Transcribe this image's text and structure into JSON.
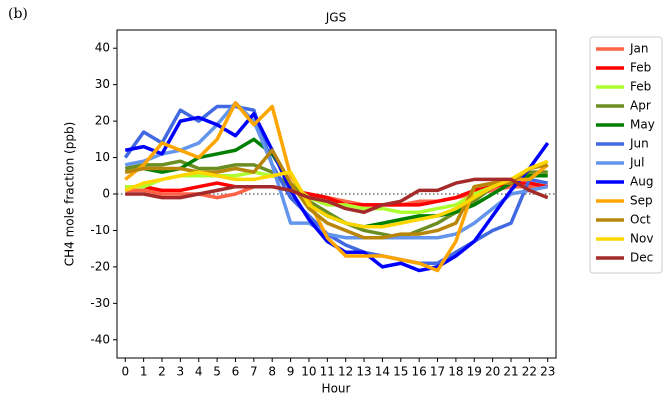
{
  "panel_label": "(b)",
  "chart_data": {
    "type": "line",
    "title": "JGS",
    "xlabel": "Hour",
    "ylabel": "CH4 mole fraction (ppb)",
    "x": [
      0,
      1,
      2,
      3,
      4,
      5,
      6,
      7,
      8,
      9,
      10,
      11,
      12,
      13,
      14,
      15,
      16,
      17,
      18,
      19,
      20,
      21,
      22,
      23
    ],
    "xlim": [
      -0.45,
      23.45
    ],
    "xticks": [
      0,
      1,
      2,
      3,
      4,
      5,
      6,
      7,
      8,
      9,
      10,
      11,
      12,
      13,
      14,
      15,
      16,
      17,
      18,
      19,
      20,
      21,
      22,
      23
    ],
    "ylim": [
      -45,
      45
    ],
    "yticks": [
      -40,
      -30,
      -20,
      -10,
      0,
      10,
      20,
      30,
      40
    ],
    "hline": 0,
    "legend": "outside-right",
    "series": [
      {
        "name": "Jan",
        "color": "#ff6347",
        "values": [
          1,
          1,
          0,
          0,
          0,
          -1,
          0,
          2,
          2,
          1,
          0,
          -1,
          -2,
          -3,
          -3,
          -3,
          -2,
          -2,
          -1,
          0,
          1,
          2,
          2,
          2
        ]
      },
      {
        "name": "Feb",
        "color": "#ff0000",
        "values": [
          2,
          2,
          1,
          1,
          2,
          3,
          2,
          2,
          2,
          1,
          0,
          -1,
          -3,
          -3,
          -3,
          -3,
          -3,
          -2,
          -1,
          1,
          2,
          3,
          3,
          2
        ]
      },
      {
        "name": "Feb",
        "color": "#adff2f",
        "values": [
          2,
          2,
          4,
          5,
          5,
          5,
          5,
          6,
          5,
          3,
          -1,
          -3,
          -3,
          -4,
          -4,
          -5,
          -5,
          -4,
          -3,
          0,
          2,
          4,
          6,
          6
        ]
      },
      {
        "name": "Apr",
        "color": "#6b8e23",
        "values": [
          7,
          8,
          8,
          9,
          7,
          7,
          8,
          8,
          6,
          2,
          -2,
          -5,
          -8,
          -10,
          -11,
          -12,
          -10,
          -8,
          -5,
          -2,
          2,
          4,
          6,
          6
        ]
      },
      {
        "name": "May",
        "color": "#008000",
        "values": [
          6,
          7,
          6,
          7,
          10,
          11,
          12,
          15,
          11,
          3,
          -3,
          -6,
          -8,
          -9,
          -8,
          -7,
          -6,
          -6,
          -5,
          -3,
          0,
          3,
          5,
          5
        ]
      },
      {
        "name": "Jun",
        "color": "#4169e1",
        "values": [
          10,
          17,
          14,
          23,
          20,
          24,
          24,
          23,
          8,
          -1,
          -6,
          -11,
          -14,
          -16,
          -17,
          -18,
          -19,
          -19,
          -16,
          -13,
          -10,
          -8,
          4,
          3
        ]
      },
      {
        "name": "Jul",
        "color": "#6495ed",
        "values": [
          8,
          9,
          11,
          12,
          14,
          19,
          25,
          20,
          8,
          -8,
          -8,
          -11,
          -12,
          -12,
          -12,
          -12,
          -12,
          -12,
          -11,
          -8,
          -4,
          0,
          1,
          2
        ]
      },
      {
        "name": "Aug",
        "color": "#0000ff",
        "values": [
          12,
          13,
          11,
          20,
          21,
          19,
          16,
          22,
          12,
          1,
          -7,
          -13,
          -16,
          -16,
          -20,
          -19,
          -21,
          -20,
          -17,
          -13,
          -6,
          1,
          7,
          14
        ]
      },
      {
        "name": "Sep",
        "color": "#ffa500",
        "values": [
          4,
          8,
          14,
          12,
          10,
          15,
          25,
          19,
          24,
          5,
          -2,
          -12,
          -17,
          -17,
          -17,
          -18,
          -19,
          -21,
          -13,
          2,
          3,
          4,
          4,
          8
        ]
      },
      {
        "name": "Oct",
        "color": "#b8860b",
        "values": [
          6,
          7,
          7,
          7,
          6,
          6,
          7,
          6,
          12,
          3,
          -4,
          -8,
          -10,
          -12,
          -12,
          -11,
          -11,
          -10,
          -8,
          2,
          3,
          3,
          7,
          8
        ]
      },
      {
        "name": "Nov",
        "color": "#ffd700",
        "values": [
          1,
          3,
          4,
          5,
          6,
          5,
          4,
          4,
          5,
          6,
          -3,
          -6,
          -8,
          -9,
          -9,
          -8,
          -7,
          -6,
          -4,
          -1,
          2,
          4,
          7,
          9
        ]
      },
      {
        "name": "Dec",
        "color": "#a52a2a",
        "values": [
          0,
          0,
          -1,
          -1,
          0,
          1,
          2,
          2,
          2,
          1,
          -1,
          -2,
          -4,
          -5,
          -3,
          -2,
          1,
          1,
          3,
          4,
          4,
          4,
          1,
          -1
        ]
      }
    ]
  }
}
